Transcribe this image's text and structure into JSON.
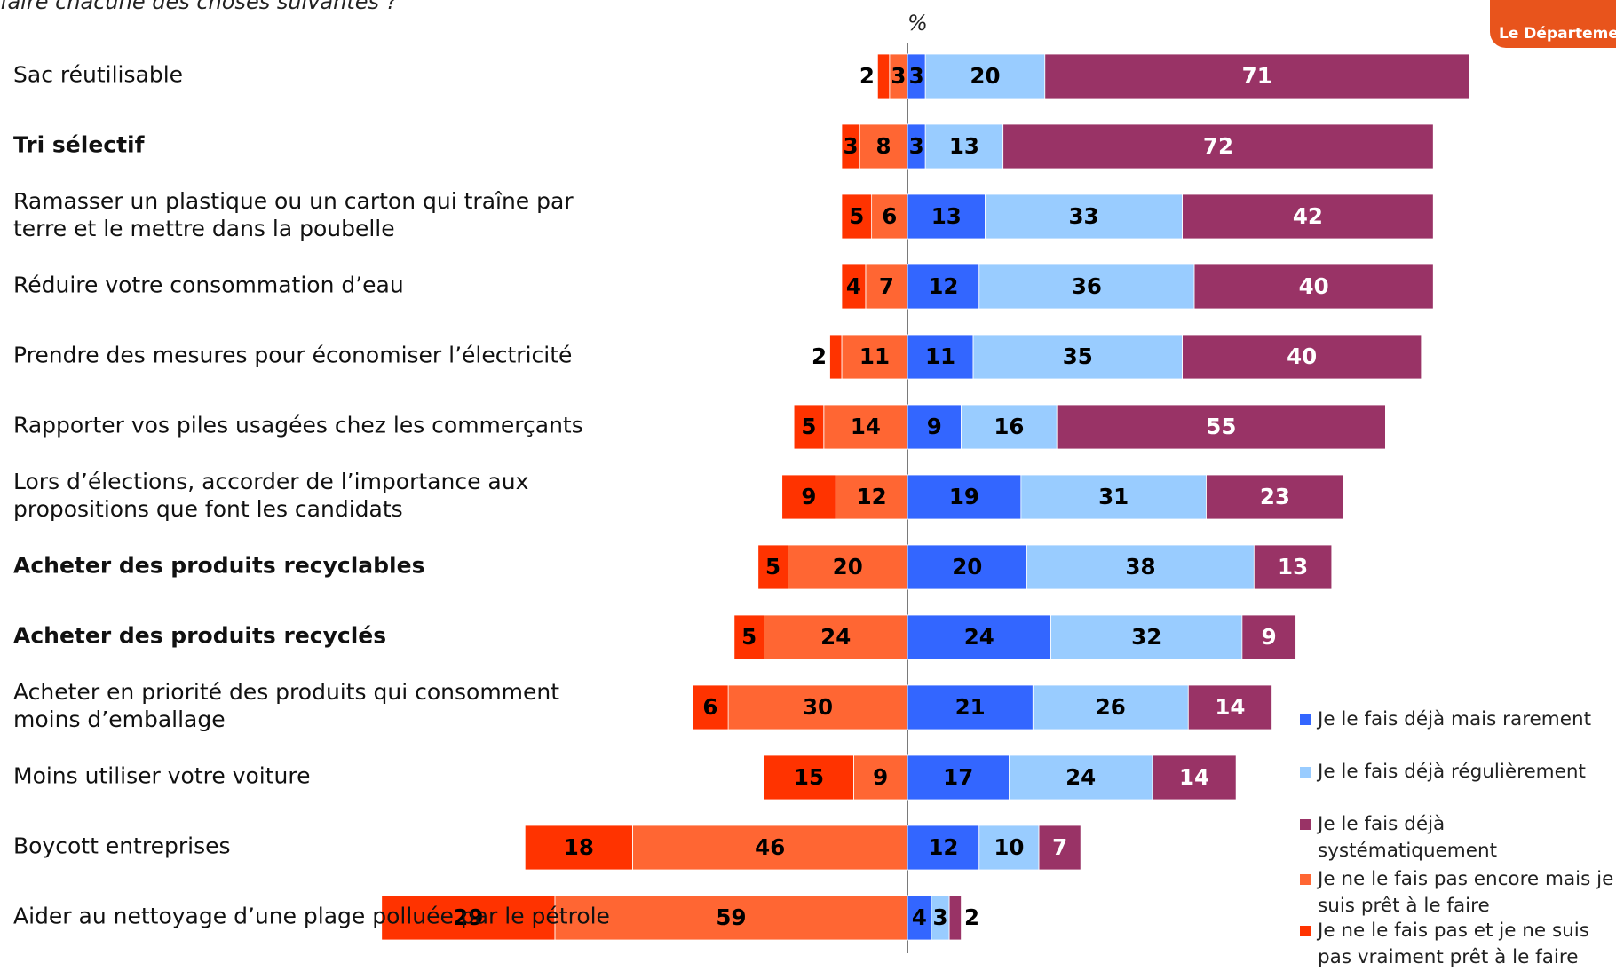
{
  "chart_data": {
    "type": "diverging_bar",
    "title": "faire chacune des choses suivantes ?",
    "unit_label": "%",
    "logo": "Le Département",
    "categories": [
      "Sac réutilisable",
      "Tri sélectif",
      "Ramasser un plastique ou un carton qui traîne par terre et le mettre dans la poubelle",
      "Réduire votre consommation d’eau",
      "Prendre des mesures pour économiser l’électricité",
      "Rapporter vos piles usagées chez les commerçants",
      "Lors d’élections, accorder de l’importance aux propositions que font les candidats",
      "Acheter des produits recyclables",
      "Acheter des produits recyclés",
      "Acheter en priorité des produits qui consomment moins d’emballage",
      "Moins utiliser votre voiture",
      "Boycott entreprises",
      "Aider au nettoyage d’une plage polluée par le pétrole"
    ],
    "bold": [
      1,
      7,
      8
    ],
    "series": [
      {
        "name": "Je le fais déjà mais rarement",
        "color": "#3366ff",
        "side": "right",
        "label_color": "#000",
        "values": [
          3,
          3,
          13,
          12,
          11,
          9,
          19,
          20,
          24,
          21,
          17,
          12,
          4
        ]
      },
      {
        "name": "Je le fais déjà régulièrement",
        "color": "#99ccff",
        "side": "right",
        "label_color": "#000",
        "values": [
          20,
          13,
          33,
          36,
          35,
          16,
          31,
          38,
          32,
          26,
          24,
          10,
          3
        ]
      },
      {
        "name": "Je le fais déjà systématiquement",
        "color": "#993366",
        "side": "right",
        "label_color": "#fff",
        "values": [
          71,
          72,
          42,
          40,
          40,
          55,
          23,
          13,
          9,
          14,
          14,
          7,
          2
        ]
      },
      {
        "name": "Je ne le fais pas encore mais je suis prêt à le faire",
        "color": "#ff6633",
        "side": "left",
        "label_color": "#000",
        "values": [
          3,
          8,
          6,
          7,
          11,
          14,
          12,
          20,
          24,
          30,
          9,
          46,
          59
        ]
      },
      {
        "name": "Je ne le fais pas et je ne suis pas vraiment prêt à le faire",
        "color": "#ff3300",
        "side": "left",
        "label_color": "#000",
        "values": [
          2,
          3,
          5,
          4,
          2,
          5,
          9,
          5,
          5,
          6,
          15,
          18,
          29
        ]
      }
    ]
  }
}
